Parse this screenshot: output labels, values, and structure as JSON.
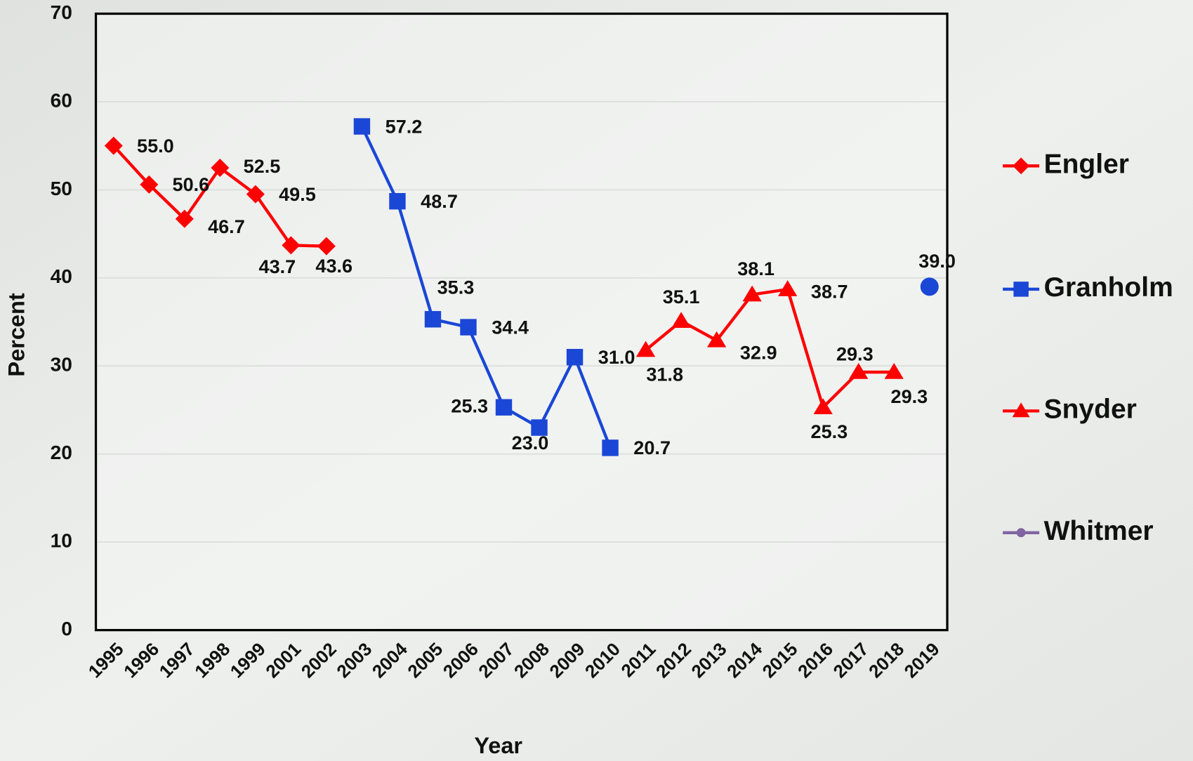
{
  "chart_data": {
    "type": "line",
    "ylabel": "Percent",
    "xlabel": "Year",
    "categories": [
      "1995",
      "1996",
      "1997",
      "1998",
      "1999",
      "2001",
      "2002",
      "2003",
      "2004",
      "2005",
      "2006",
      "2007",
      "2008",
      "2009",
      "2010",
      "2011",
      "2012",
      "2013",
      "2014",
      "2015",
      "2016",
      "2017",
      "2018",
      "2019"
    ],
    "ylim": [
      0,
      70
    ],
    "yticks": [
      0,
      10,
      20,
      30,
      40,
      50,
      60,
      70
    ],
    "grid": true,
    "legend": "right",
    "series": [
      {
        "name": "Engler",
        "color": "#ff0000",
        "marker": "diamond",
        "values": [
          55.0,
          50.6,
          46.7,
          52.5,
          49.5,
          43.7,
          43.6,
          null,
          null,
          null,
          null,
          null,
          null,
          null,
          null,
          null,
          null,
          null,
          null,
          null,
          null,
          null,
          null,
          null
        ],
        "value_labels": [
          "55.0",
          "50.6",
          "46.7",
          "52.5",
          "49.5",
          "43.7",
          "43.6",
          null,
          null,
          null,
          null,
          null,
          null,
          null,
          null,
          null,
          null,
          null,
          null,
          null,
          null,
          null,
          null,
          null
        ]
      },
      {
        "name": "Granholm",
        "color": "#1a47d6",
        "marker": "square",
        "values": [
          null,
          null,
          null,
          null,
          null,
          null,
          null,
          57.2,
          48.7,
          35.3,
          34.4,
          25.3,
          23.0,
          31.0,
          20.7,
          null,
          null,
          null,
          null,
          null,
          null,
          null,
          null,
          null
        ],
        "value_labels": [
          null,
          null,
          null,
          null,
          null,
          null,
          null,
          "57.2",
          "48.7",
          "35.3",
          "34.4",
          "25.3",
          "23.0",
          "31.0",
          "20.7",
          null,
          null,
          null,
          null,
          null,
          null,
          null,
          null,
          null
        ]
      },
      {
        "name": "Snyder",
        "color": "#ff0000",
        "marker": "triangle",
        "values": [
          null,
          null,
          null,
          null,
          null,
          null,
          null,
          null,
          null,
          null,
          null,
          null,
          null,
          null,
          null,
          31.8,
          35.1,
          32.9,
          38.1,
          38.7,
          25.3,
          29.3,
          29.3,
          null
        ],
        "value_labels": [
          null,
          null,
          null,
          null,
          null,
          null,
          null,
          null,
          null,
          null,
          null,
          null,
          null,
          null,
          null,
          "31.8",
          "35.1",
          "32.9",
          "38.1",
          "38.7",
          "25.3",
          "29.3",
          "29.3",
          null
        ]
      },
      {
        "name": "Whitmer",
        "color": "#8064a2",
        "point_color": "#1a47d6",
        "marker": "circle",
        "values": [
          null,
          null,
          null,
          null,
          null,
          null,
          null,
          null,
          null,
          null,
          null,
          null,
          null,
          null,
          null,
          null,
          null,
          null,
          null,
          null,
          null,
          null,
          null,
          39.0
        ],
        "value_labels": [
          null,
          null,
          null,
          null,
          null,
          null,
          null,
          null,
          null,
          null,
          null,
          null,
          null,
          null,
          null,
          null,
          null,
          null,
          null,
          null,
          null,
          null,
          null,
          "39.0"
        ]
      }
    ]
  }
}
